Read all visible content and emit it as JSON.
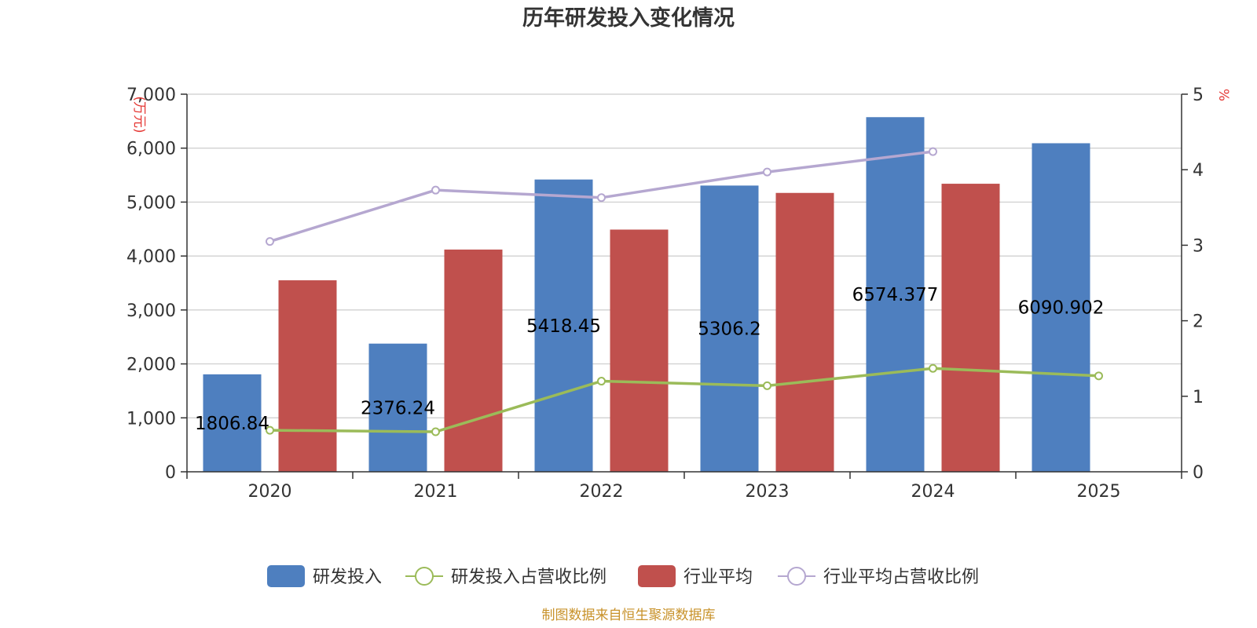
{
  "chart_data": {
    "type": "bar",
    "title": "历年研发投入变化情况",
    "source": "制图数据来自恒生聚源数据库",
    "categories": [
      "2020",
      "2021",
      "2022",
      "2023",
      "2024",
      "2025"
    ],
    "y_left": {
      "unit": "(万元)",
      "ylim": [
        0,
        7000
      ],
      "ticks": [
        "0",
        "1,000",
        "2,000",
        "3,000",
        "4,000",
        "5,000",
        "6,000",
        "7,000"
      ]
    },
    "y_right": {
      "unit": "%",
      "ylim": [
        0,
        5
      ],
      "ticks": [
        "0",
        "1",
        "2",
        "3",
        "4",
        "5"
      ]
    },
    "grid": true,
    "legend_position": "bottom",
    "series": [
      {
        "name": "研发投入",
        "kind": "bar",
        "axis": "left",
        "color": "#4e7fbf",
        "values": [
          1806.84,
          2376.24,
          5418.45,
          5306.2,
          6574.377,
          6090.902
        ],
        "labels": [
          "1806.84",
          "2376.24",
          "5418.45",
          "5306.2",
          "6574.377",
          "6090.902"
        ]
      },
      {
        "name": "研发投入占营收比例",
        "kind": "line",
        "axis": "right",
        "color": "#9bbb59",
        "values": [
          0.55,
          0.53,
          1.2,
          1.14,
          1.37,
          1.27
        ]
      },
      {
        "name": "行业平均",
        "kind": "bar",
        "axis": "left",
        "color": "#c0504d",
        "values": [
          3550,
          4120,
          4490,
          5170,
          5340,
          null
        ]
      },
      {
        "name": "行业平均占营收比例",
        "kind": "line",
        "axis": "right",
        "color": "#b5a7d0",
        "values": [
          3.05,
          3.73,
          3.63,
          3.97,
          4.24,
          null
        ]
      }
    ]
  }
}
